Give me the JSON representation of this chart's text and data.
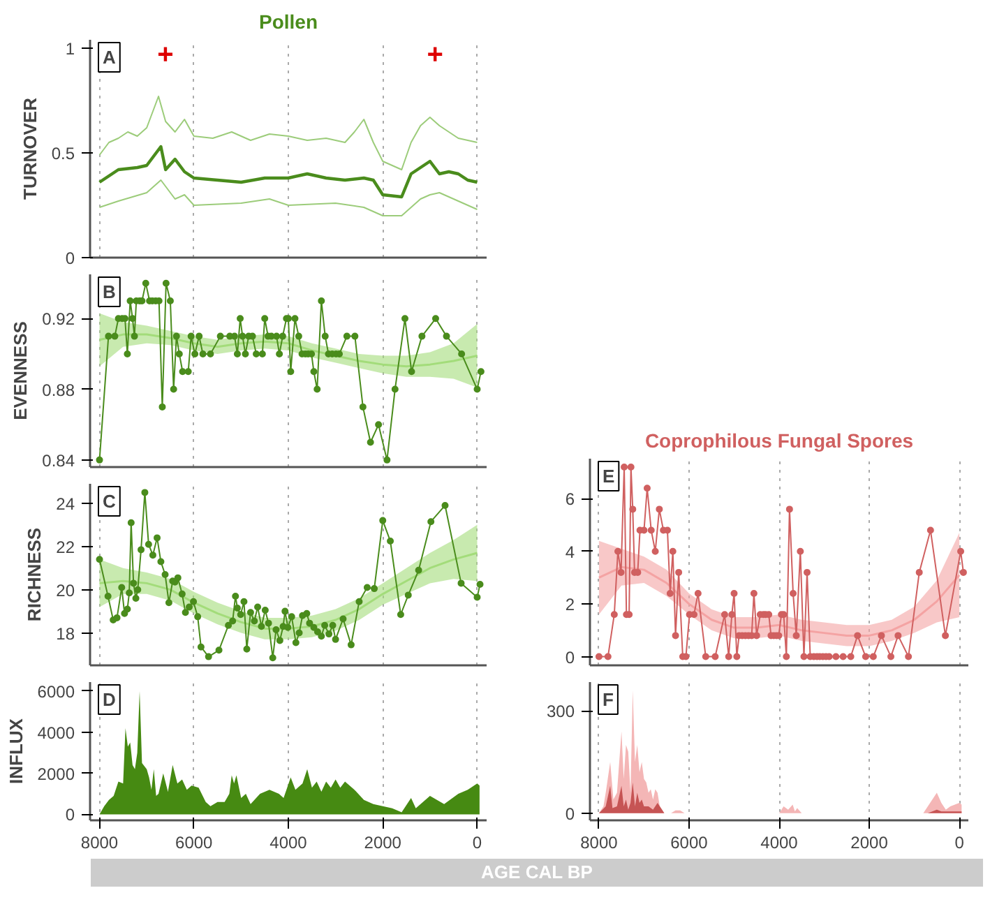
{
  "chart_data": [
    {
      "type": "line",
      "title": "Pollen",
      "ylabel": "TURNOVER",
      "xlim": [
        8200,
        -200
      ],
      "ylim": [
        0,
        1.04
      ],
      "xticks": [
        8000,
        6000,
        4000,
        2000,
        0
      ],
      "yticks": [
        0,
        0.5,
        1
      ],
      "grid": "x",
      "tick_labels": "y",
      "annotations": [
        "A",
        "+",
        "+"
      ],
      "series": [
        {
          "color": "#4a8c1c",
          "x": [
            8000,
            7600,
            7200,
            7000,
            6800,
            6700,
            6600,
            6400,
            6200,
            6000,
            5500,
            5000,
            4500,
            4000,
            3600,
            3200,
            2800,
            2400,
            2200,
            2000,
            1600,
            1400,
            1200,
            1000,
            800,
            600,
            400,
            200,
            0
          ],
          "values": [
            0.36,
            0.42,
            0.43,
            0.44,
            0.5,
            0.53,
            0.42,
            0.47,
            0.41,
            0.38,
            0.37,
            0.36,
            0.38,
            0.38,
            0.4,
            0.38,
            0.37,
            0.38,
            0.37,
            0.3,
            0.29,
            0.4,
            0.43,
            0.46,
            0.4,
            0.41,
            0.4,
            0.37,
            0.36
          ]
        },
        {
          "color": "#9ccc7a",
          "x": [
            8000,
            7800,
            7600,
            7400,
            7200,
            7000,
            6750,
            6600,
            6400,
            6200,
            6000,
            5600,
            5200,
            4800,
            4400,
            4000,
            3600,
            3200,
            2800,
            2600,
            2400,
            2200,
            2000,
            1800,
            1600,
            1400,
            1200,
            1000,
            800,
            600,
            400,
            200,
            0
          ],
          "values": [
            0.49,
            0.55,
            0.57,
            0.6,
            0.58,
            0.62,
            0.77,
            0.65,
            0.6,
            0.66,
            0.58,
            0.57,
            0.6,
            0.56,
            0.59,
            0.58,
            0.56,
            0.57,
            0.55,
            0.6,
            0.66,
            0.55,
            0.46,
            0.44,
            0.42,
            0.55,
            0.63,
            0.67,
            0.63,
            0.6,
            0.57,
            0.56,
            0.55
          ]
        },
        {
          "color": "#9ccc7a",
          "x": [
            8000,
            7600,
            7000,
            6700,
            6400,
            6200,
            6000,
            5000,
            4400,
            4000,
            3000,
            2400,
            2000,
            1600,
            1200,
            1000,
            800,
            400,
            0
          ],
          "values": [
            0.24,
            0.27,
            0.31,
            0.37,
            0.28,
            0.3,
            0.25,
            0.26,
            0.28,
            0.25,
            0.26,
            0.24,
            0.2,
            0.2,
            0.28,
            0.3,
            0.31,
            0.27,
            0.23
          ]
        }
      ]
    },
    {
      "type": "line",
      "ylabel": "EVENNESS",
      "xlim": [
        8200,
        -200
      ],
      "ylim": [
        0.836,
        0.945
      ],
      "xticks": [
        8000,
        6000,
        4000,
        2000,
        0
      ],
      "yticks": [
        0.84,
        0.88,
        0.92
      ],
      "grid": "x",
      "tick_labels": "y",
      "annotations": [
        "B"
      ],
      "series": [
        {
          "color": "#a3dc7a",
          "marker": "none",
          "x": [
            8000,
            7500,
            7000,
            6500,
            6000,
            5500,
            5000,
            4500,
            4000,
            3500,
            3000,
            2500,
            2000,
            1500,
            1000,
            500,
            0
          ],
          "values": [
            0.908,
            0.911,
            0.911,
            0.909,
            0.906,
            0.904,
            0.906,
            0.907,
            0.906,
            0.902,
            0.899,
            0.896,
            0.894,
            0.893,
            0.894,
            0.896,
            0.899
          ],
          "lower": [
            0.893,
            0.904,
            0.906,
            0.905,
            0.902,
            0.9,
            0.902,
            0.903,
            0.902,
            0.898,
            0.895,
            0.892,
            0.889,
            0.887,
            0.887,
            0.886,
            0.881
          ],
          "upper": [
            0.923,
            0.918,
            0.916,
            0.913,
            0.91,
            0.908,
            0.91,
            0.911,
            0.91,
            0.906,
            0.903,
            0.9,
            0.899,
            0.899,
            0.901,
            0.906,
            0.917
          ]
        },
        {
          "color": "#4a8c1c",
          "marker": "circle",
          "x": [
            8000,
            7810,
            7676,
            7600,
            7520,
            7460,
            7410,
            7350,
            7300,
            7260,
            7220,
            7150,
            7100,
            7020,
            6940,
            6880,
            6810,
            6740,
            6670,
            6590,
            6500,
            6430,
            6370,
            6310,
            6240,
            6120,
            6060,
            5980,
            5890,
            5810,
            5650,
            5440,
            5240,
            5140,
            5080,
            5020,
            4970,
            4910,
            4840,
            4760,
            4680,
            4550,
            4500,
            4430,
            4360,
            4250,
            4190,
            4120,
            4040,
            4000,
            3950,
            3860,
            3780,
            3710,
            3640,
            3580,
            3510,
            3460,
            3390,
            3300,
            3220,
            3150,
            3070,
            2990,
            2920,
            2760,
            2590,
            2420,
            2260,
            2090,
            1910,
            1740,
            1530,
            1390,
            1170,
            880,
            650,
            330,
            0,
            -80
          ],
          "values": [
            0.84,
            0.91,
            0.91,
            0.92,
            0.92,
            0.92,
            0.9,
            0.93,
            0.92,
            0.91,
            0.93,
            0.93,
            0.93,
            0.94,
            0.93,
            0.93,
            0.93,
            0.93,
            0.87,
            0.94,
            0.93,
            0.88,
            0.91,
            0.9,
            0.89,
            0.89,
            0.91,
            0.9,
            0.91,
            0.9,
            0.9,
            0.91,
            0.91,
            0.91,
            0.9,
            0.92,
            0.91,
            0.9,
            0.91,
            0.91,
            0.9,
            0.9,
            0.92,
            0.91,
            0.91,
            0.91,
            0.9,
            0.91,
            0.92,
            0.92,
            0.89,
            0.92,
            0.91,
            0.9,
            0.9,
            0.9,
            0.9,
            0.89,
            0.88,
            0.93,
            0.91,
            0.9,
            0.9,
            0.9,
            0.9,
            0.91,
            0.91,
            0.87,
            0.85,
            0.86,
            0.84,
            0.88,
            0.92,
            0.89,
            0.91,
            0.92,
            0.91,
            0.9,
            0.88,
            0.89
          ]
        }
      ]
    },
    {
      "type": "line",
      "ylabel": "RICHNESS",
      "xlim": [
        8200,
        -200
      ],
      "ylim": [
        16.5,
        24.9
      ],
      "xticks": [
        8000,
        6000,
        4000,
        2000,
        0
      ],
      "yticks": [
        18,
        20,
        22,
        24
      ],
      "grid": "x",
      "tick_labels": "y",
      "annotations": [
        "C"
      ],
      "series": [
        {
          "color": "#a3dc7a",
          "marker": "none",
          "x": [
            8000,
            7500,
            7000,
            6500,
            6000,
            5500,
            5000,
            4500,
            4000,
            3500,
            3000,
            2500,
            2000,
            1500,
            1000,
            500,
            0
          ],
          "values": [
            20.3,
            20.4,
            20.3,
            20.0,
            19.4,
            18.9,
            18.5,
            18.2,
            18.2,
            18.3,
            18.6,
            19.1,
            19.8,
            20.4,
            21.0,
            21.4,
            21.7
          ],
          "lower": [
            19.2,
            19.8,
            19.8,
            19.5,
            18.9,
            18.4,
            18.0,
            17.7,
            17.7,
            17.8,
            18.1,
            18.6,
            19.3,
            19.8,
            20.3,
            20.5,
            20.4
          ],
          "upper": [
            21.4,
            21.0,
            20.8,
            20.5,
            19.9,
            19.4,
            19.0,
            18.7,
            18.7,
            18.8,
            19.1,
            19.6,
            20.3,
            21.0,
            21.7,
            22.3,
            23.0
          ]
        },
        {
          "color": "#4a8c1c",
          "marker": "circle",
          "x": [
            8000,
            7820,
            7710,
            7630,
            7530,
            7470,
            7410,
            7370,
            7330,
            7280,
            7230,
            7190,
            7120,
            7040,
            6960,
            6870,
            6780,
            6700,
            6610,
            6530,
            6450,
            6400,
            6340,
            6250,
            6180,
            6100,
            6010,
            5920,
            5850,
            5690,
            5470,
            5270,
            5180,
            5120,
            5080,
            5010,
            4940,
            4880,
            4800,
            4720,
            4650,
            4570,
            4490,
            4420,
            4330,
            4260,
            4180,
            4110,
            4070,
            4010,
            3930,
            3840,
            3770,
            3700,
            3610,
            3550,
            3460,
            3380,
            3300,
            3230,
            3140,
            3060,
            3000,
            2840,
            2670,
            2500,
            2330,
            2180,
            2000,
            1840,
            1620,
            1460,
            1240,
            980,
            680,
            340,
            0,
            -60
          ],
          "values": [
            21.4,
            19.7,
            18.6,
            18.7,
            20.1,
            18.9,
            19.1,
            19.85,
            23.1,
            20.3,
            19.6,
            20.0,
            21.85,
            24.5,
            22.1,
            21.6,
            22.4,
            21.3,
            20.7,
            19.4,
            20.4,
            20.35,
            20.55,
            19.8,
            18.95,
            19.2,
            19.45,
            18.75,
            17.35,
            16.9,
            17.2,
            18.35,
            18.55,
            19.7,
            19.15,
            18.85,
            19.45,
            17.25,
            18.95,
            18.55,
            19.2,
            18.3,
            19.05,
            18.45,
            16.85,
            18.15,
            17.65,
            18.3,
            19.0,
            18.25,
            18.75,
            17.55,
            18.0,
            18.8,
            18.9,
            18.45,
            18.25,
            18.05,
            17.85,
            18.35,
            17.95,
            18.35,
            17.7,
            18.65,
            17.45,
            19.45,
            20.1,
            20.05,
            23.2,
            22.25,
            18.85,
            19.75,
            20.9,
            23.15,
            23.9,
            20.3,
            19.65,
            20.25
          ]
        }
      ]
    },
    {
      "type": "area",
      "ylabel": "INFLUX",
      "xlabel": "AGE CAL BP",
      "xlim": [
        8200,
        -200
      ],
      "ylim": [
        -290,
        6440
      ],
      "xticks": [
        8000,
        6000,
        4000,
        2000,
        0
      ],
      "yticks": [
        0,
        2000,
        4000,
        6000
      ],
      "grid": "x",
      "annotations": [
        "D"
      ],
      "color": "#468a12",
      "x": [
        8000,
        7900,
        7800,
        7700,
        7600,
        7500,
        7450,
        7400,
        7350,
        7300,
        7250,
        7200,
        7150,
        7100,
        7000,
        6950,
        6900,
        6850,
        6800,
        6750,
        6650,
        6550,
        6450,
        6350,
        6250,
        6150,
        6050,
        5900,
        5750,
        5650,
        5500,
        5350,
        5250,
        5200,
        5150,
        5100,
        5000,
        4900,
        4800,
        4600,
        4400,
        4200,
        4100,
        3950,
        3850,
        3700,
        3600,
        3500,
        3400,
        3300,
        3200,
        3100,
        3000,
        2900,
        2800,
        2600,
        2400,
        2200,
        2000,
        1800,
        1600,
        1400,
        1300,
        1000,
        700,
        400,
        200,
        0,
        -50
      ],
      "values": [
        0,
        400,
        700,
        900,
        1600,
        1500,
        4200,
        3300,
        3500,
        2400,
        2200,
        3000,
        6000,
        2500,
        2200,
        1800,
        1200,
        2200,
        900,
        1000,
        2000,
        1100,
        2400,
        1500,
        1700,
        1200,
        1400,
        1300,
        600,
        400,
        600,
        600,
        1000,
        1900,
        1500,
        1900,
        800,
        1000,
        500,
        1000,
        1200,
        1000,
        800,
        1800,
        1200,
        1500,
        2200,
        1300,
        1600,
        1100,
        1600,
        1300,
        1700,
        1300,
        1600,
        1200,
        700,
        500,
        400,
        300,
        100,
        800,
        300,
        900,
        500,
        1000,
        1200,
        1500,
        1400
      ]
    },
    {
      "type": "line",
      "title": "Coprophilous Fungal Spores",
      "xlim": [
        8200,
        -200
      ],
      "ylim": [
        -0.33,
        7.52
      ],
      "xticks": [
        8000,
        6000,
        4000,
        2000,
        0
      ],
      "yticks": [
        0,
        2,
        4,
        6
      ],
      "grid": "x",
      "tick_labels": "y",
      "annotations": [
        "E"
      ],
      "series": [
        {
          "color": "#f4a3a3",
          "marker": "none",
          "x": [
            8000,
            7500,
            7000,
            6500,
            6000,
            5500,
            5000,
            4500,
            4000,
            3500,
            3000,
            2500,
            2000,
            1500,
            1000,
            500,
            0
          ],
          "values": [
            3.0,
            3.4,
            3.3,
            2.8,
            2.0,
            1.4,
            1.1,
            1.1,
            1.2,
            1.0,
            0.9,
            0.8,
            0.8,
            1.0,
            1.4,
            2.1,
            3.1
          ],
          "lower": [
            1.6,
            2.7,
            2.8,
            2.3,
            1.6,
            1.0,
            0.7,
            0.7,
            0.8,
            0.6,
            0.5,
            0.4,
            0.4,
            0.6,
            0.9,
            1.3,
            1.5
          ],
          "upper": [
            4.4,
            4.1,
            3.8,
            3.3,
            2.4,
            1.8,
            1.5,
            1.5,
            1.6,
            1.4,
            1.3,
            1.2,
            1.2,
            1.4,
            1.9,
            2.9,
            4.7
          ]
        },
        {
          "color": "#d06060",
          "marker": "circle",
          "x": [
            8000,
            7800,
            7660,
            7580,
            7510,
            7440,
            7390,
            7330,
            7290,
            7250,
            7210,
            7140,
            7090,
            7000,
            6930,
            6840,
            6750,
            6660,
            6570,
            6480,
            6420,
            6360,
            6300,
            6230,
            6140,
            6070,
            5990,
            5890,
            5800,
            5630,
            5420,
            5210,
            5120,
            5050,
            5000,
            4940,
            4890,
            4820,
            4750,
            4680,
            4610,
            4560,
            4500,
            4420,
            4350,
            4300,
            4230,
            4180,
            4120,
            4060,
            4010,
            3950,
            3900,
            3840,
            3770,
            3690,
            3620,
            3530,
            3450,
            3380,
            3310,
            3230,
            3160,
            3100,
            3030,
            2960,
            2890,
            2740,
            2580,
            2410,
            2260,
            2080,
            1910,
            1730,
            1520,
            1360,
            1130,
            890,
            640,
            310,
            -30,
            -90
          ],
          "values": [
            0,
            0,
            1.6,
            4.0,
            3.2,
            7.2,
            1.6,
            1.6,
            7.2,
            5.6,
            3.2,
            3.2,
            4.8,
            4.8,
            6.4,
            4.8,
            4.0,
            5.6,
            4.8,
            4.8,
            2.4,
            4.0,
            0.8,
            3.2,
            0,
            0,
            1.6,
            1.6,
            2.4,
            0,
            0,
            1.6,
            0,
            1.6,
            2.4,
            0,
            0.8,
            0.8,
            0.8,
            0.8,
            0.8,
            2.4,
            0.8,
            1.6,
            1.6,
            1.6,
            1.6,
            0.8,
            0.8,
            0.8,
            0.8,
            1.6,
            1.6,
            0,
            5.6,
            2.4,
            0.8,
            4.0,
            0,
            3.2,
            0,
            0,
            0,
            0,
            0,
            0,
            0,
            0,
            0,
            0,
            0.8,
            0,
            0,
            0.8,
            0,
            0.8,
            0,
            3.2,
            4.8,
            0.8,
            4.0,
            3.2
          ]
        }
      ]
    },
    {
      "type": "area",
      "xlim": [
        8200,
        -200
      ],
      "ylim": [
        -21,
        384
      ],
      "xticks": [
        8000,
        6000,
        4000,
        2000,
        0
      ],
      "yticks": [
        0,
        300
      ],
      "grid": "x",
      "annotations": [
        "F"
      ],
      "series": [
        {
          "color": "#f4b6b6",
          "x": [
            8000,
            7900,
            7850,
            7750,
            7680,
            7600,
            7500,
            7450,
            7400,
            7350,
            7300,
            7250,
            7200,
            7150,
            7100,
            7050,
            7000,
            6950,
            6900,
            6850,
            6800,
            6750,
            6700,
            6650,
            6550,
            6400,
            6300,
            6200,
            6100,
            4000,
            3900,
            3800,
            3700,
            3650,
            3600,
            3500,
            800,
            700,
            600,
            500,
            400,
            300,
            200,
            100,
            0,
            -50
          ],
          "values": [
            0,
            20,
            60,
            150,
            40,
            60,
            240,
            100,
            200,
            180,
            60,
            360,
            150,
            200,
            120,
            150,
            100,
            90,
            60,
            70,
            40,
            70,
            60,
            20,
            0,
            0,
            8,
            8,
            0,
            0,
            20,
            10,
            25,
            5,
            15,
            0,
            0,
            20,
            40,
            60,
            30,
            10,
            20,
            25,
            30,
            25
          ]
        },
        {
          "color": "#c65454",
          "x": [
            8000,
            7850,
            7750,
            7700,
            7600,
            7500,
            7450,
            7400,
            7350,
            7300,
            7250,
            7200,
            7150,
            7100,
            7050,
            7000,
            6900,
            6800,
            6700,
            6600,
            6550,
            700,
            600,
            500,
            400,
            0,
            -50
          ],
          "values": [
            0,
            20,
            80,
            15,
            20,
            80,
            20,
            40,
            10,
            30,
            90,
            20,
            60,
            30,
            40,
            20,
            20,
            10,
            30,
            10,
            0,
            0,
            5,
            10,
            5,
            5,
            5
          ]
        }
      ]
    }
  ]
}
